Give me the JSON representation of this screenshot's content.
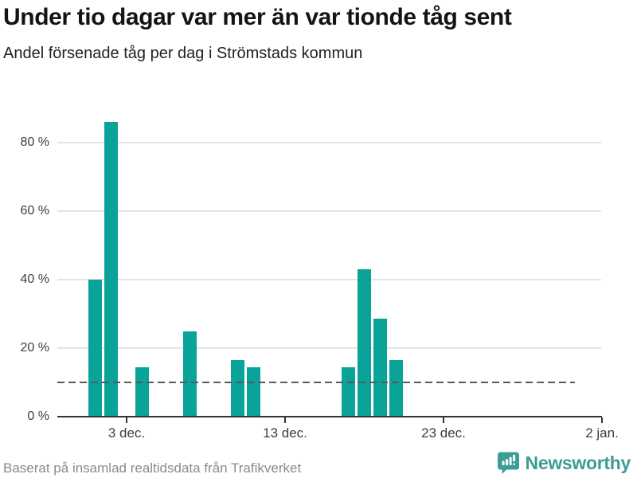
{
  "header": {
    "title": "Under tio dagar var mer än var tionde tåg sent",
    "subtitle": "Andel försenade tåg per dag i Strömstads kommun"
  },
  "chart_data": {
    "type": "bar",
    "title": "Andel försenade tåg per dag i Strömstads kommun",
    "x_dates": [
      "1 dec.",
      "2 dec.",
      "4 dec.",
      "7 dec.",
      "10 dec.",
      "11 dec.",
      "17 dec.",
      "18 dec.",
      "19 dec.",
      "20 dec."
    ],
    "x_day_numbers": [
      1,
      2,
      4,
      7,
      10,
      11,
      17,
      18,
      19,
      20
    ],
    "values": [
      40,
      86,
      14.5,
      25,
      16.5,
      14.5,
      14.5,
      43,
      28.5,
      16.5
    ],
    "unit": "%",
    "xticks": [
      {
        "day": 3,
        "label": "3 dec."
      },
      {
        "day": 13,
        "label": "13 dec."
      },
      {
        "day": 23,
        "label": "23 dec."
      },
      {
        "day": 33,
        "label": "2 jan."
      }
    ],
    "yticks": [
      {
        "value": 0,
        "label": "0 %"
      },
      {
        "value": 20,
        "label": "20 %"
      },
      {
        "value": 40,
        "label": "40 %"
      },
      {
        "value": 60,
        "label": "60 %"
      },
      {
        "value": 80,
        "label": "80 %"
      }
    ],
    "ylim": [
      0,
      88
    ],
    "grid": true,
    "legend": false,
    "reference_line": {
      "value": 10,
      "style": "dashed"
    },
    "colors": {
      "bar": "#0aa39a",
      "gridline": "#e4e4e4",
      "axis": "#333333",
      "reference": "#595959",
      "tick_text": "#3d3d3d"
    }
  },
  "footer": {
    "source": "Baserat på insamlad realtidsdata från Trafikverket",
    "logo_text": "Newsworthy",
    "logo_icon": "newsworthy-speech-bubble-chart-icon",
    "logo_color": "#3d9c95"
  }
}
